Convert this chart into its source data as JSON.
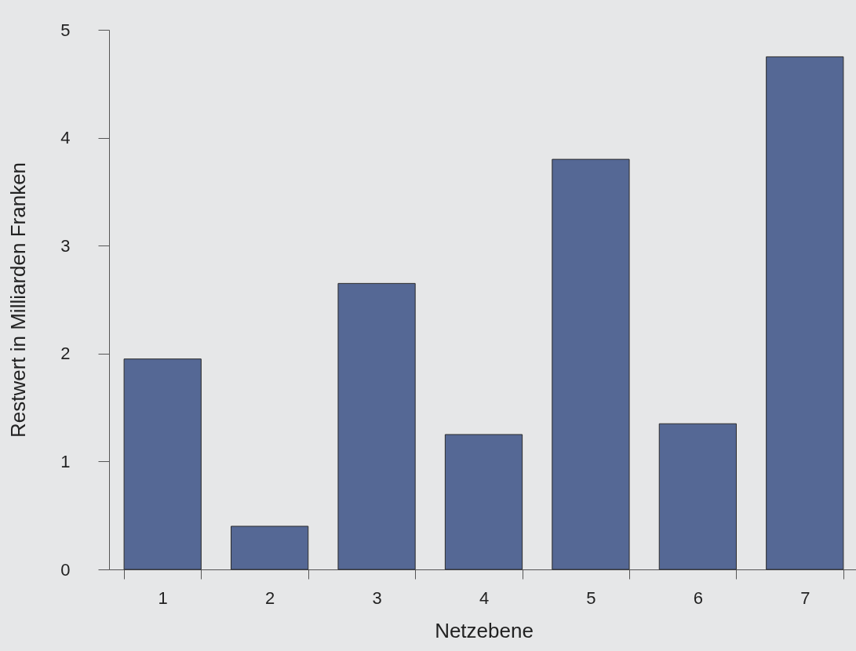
{
  "chart_data": {
    "type": "bar",
    "xlabel": "Netzebene",
    "ylabel": "Restwert in Milliarden Franken",
    "categories": [
      "1",
      "2",
      "3",
      "4",
      "5",
      "6",
      "7"
    ],
    "values": [
      1.95,
      0.4,
      2.65,
      1.25,
      3.8,
      1.35,
      4.75
    ],
    "color": "#556895",
    "ylim": [
      0,
      5
    ],
    "yticks": [
      0,
      1,
      2,
      3,
      4,
      5
    ],
    "grid": false
  }
}
